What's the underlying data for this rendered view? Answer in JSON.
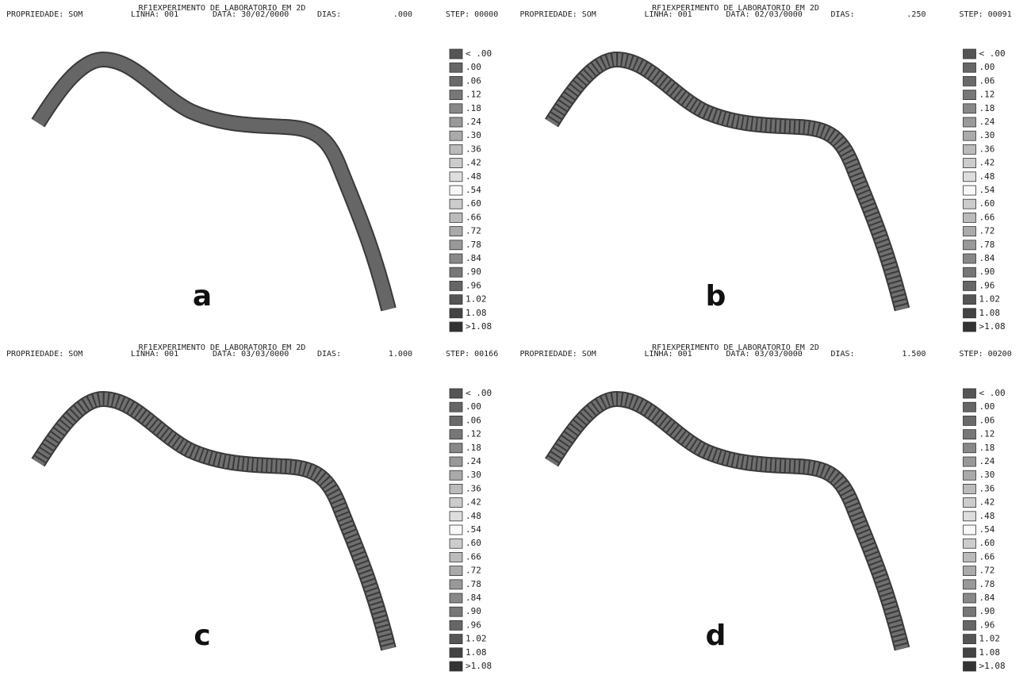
{
  "legend_labels": [
    "< .00",
    ".00",
    ".06",
    ".12",
    ".18",
    ".24",
    ".30",
    ".36",
    ".42",
    ".48",
    ".54",
    ".60",
    ".66",
    ".72",
    ".78",
    ".84",
    ".90",
    ".96",
    "1.02",
    "1.08",
    ">1.08"
  ],
  "panels": [
    {
      "letter": "a",
      "property": "PROPRIEDADE: SOM",
      "title": "RF1EXPERIMENTO DE LABORATORIO EM 2D",
      "line": "LINHA: 001",
      "date": "DATA: 30/02/0000",
      "days_label": "DIAS:",
      "days": ".000",
      "step": "STEP: 00000"
    },
    {
      "letter": "b",
      "property": "PROPRIEDADE: SOM",
      "title": "RF1EXPERIMENTO DE LABORATORIO EM 2D",
      "line": "LINHA: 001",
      "date": "DATA: 02/03/0000",
      "days_label": "DIAS:",
      "days": ".250",
      "step": "STEP: 00091"
    },
    {
      "letter": "c",
      "property": "PROPRIEDADE: SOM",
      "title": "RF1EXPERIMENTO DE LABORATORIO EM 2D",
      "line": "LINHA: 001",
      "date": "DATA: 03/03/0000",
      "days_label": "DIAS:",
      "days": "1.000",
      "step": "STEP: 00166"
    },
    {
      "letter": "d",
      "property": "PROPRIEDADE: SOM",
      "title": "RF1EXPERIMENTO DE LABORATORIO EM 2D",
      "line": "LINHA: 001",
      "date": "DATA: 03/03/0000",
      "days_label": "DIAS:",
      "days": "1.500",
      "step": "STEP: 00200"
    }
  ]
}
